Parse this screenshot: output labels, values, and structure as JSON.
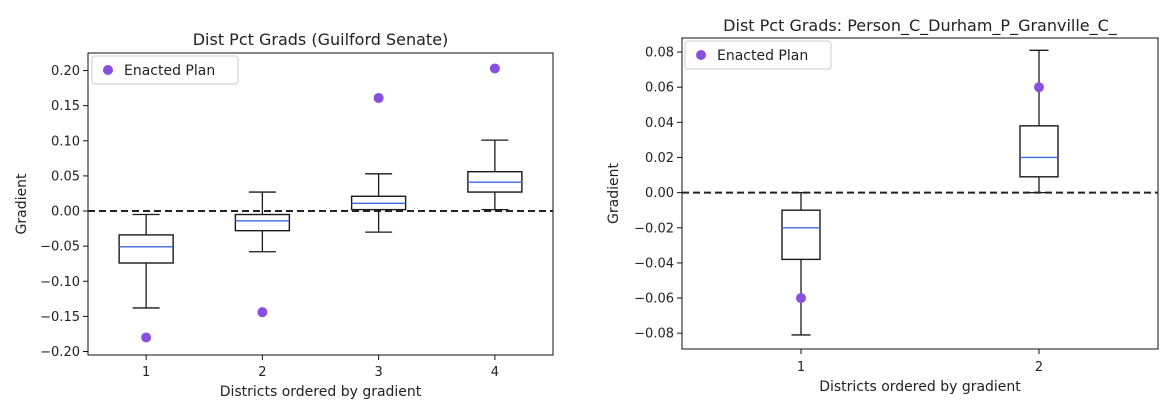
{
  "chart_data": [
    {
      "type": "box",
      "title": "Dist Pct Grads (Guilford Senate)",
      "xlabel": "Districts ordered by gradient",
      "ylabel": "Gradient",
      "categories": [
        "1",
        "2",
        "3",
        "4"
      ],
      "ylim": [
        -0.205,
        0.225
      ],
      "yticks": [
        -0.2,
        -0.15,
        -0.1,
        -0.05,
        0.0,
        0.05,
        0.1,
        0.15,
        0.2
      ],
      "ytick_labels": [
        "−0.20",
        "−0.15",
        "−0.10",
        "−0.05",
        "0.00",
        "0.05",
        "0.10",
        "0.15",
        "0.20"
      ],
      "boxes": [
        {
          "whisker_low": -0.138,
          "q1": -0.074,
          "median": -0.051,
          "q3": -0.034,
          "whisker_high": -0.005
        },
        {
          "whisker_low": -0.058,
          "q1": -0.028,
          "median": -0.014,
          "q3": -0.005,
          "whisker_high": 0.027
        },
        {
          "whisker_low": -0.03,
          "q1": 0.002,
          "median": 0.011,
          "q3": 0.021,
          "whisker_high": 0.053
        },
        {
          "whisker_low": 0.002,
          "q1": 0.027,
          "median": 0.041,
          "q3": 0.056,
          "whisker_high": 0.101
        }
      ],
      "reference_line": 0.0,
      "enacted": {
        "name": "Enacted Plan",
        "values": [
          -0.18,
          -0.144,
          0.161,
          0.203
        ]
      },
      "legend": "top-left",
      "grid": false
    },
    {
      "type": "box",
      "title": "Dist Pct Grads: Person_C_Durham_P_Granville_C_",
      "xlabel": "Districts ordered by gradient",
      "ylabel": "Gradient",
      "categories": [
        "1",
        "2"
      ],
      "ylim": [
        -0.089,
        0.088
      ],
      "yticks": [
        -0.08,
        -0.06,
        -0.04,
        -0.02,
        0.0,
        0.02,
        0.04,
        0.06,
        0.08
      ],
      "ytick_labels": [
        "−0.08",
        "−0.06",
        "−0.04",
        "−0.02",
        "0.00",
        "0.02",
        "0.04",
        "0.06",
        "0.08"
      ],
      "boxes": [
        {
          "whisker_low": -0.081,
          "q1": -0.038,
          "median": -0.02,
          "q3": -0.01,
          "whisker_high": 0.0
        },
        {
          "whisker_low": 0.0,
          "q1": 0.009,
          "median": 0.02,
          "q3": 0.038,
          "whisker_high": 0.081
        }
      ],
      "reference_line": 0.0,
      "enacted": {
        "name": "Enacted Plan",
        "values": [
          -0.06,
          0.06
        ]
      },
      "legend": "top-left",
      "grid": false
    }
  ],
  "colors": {
    "median": "#4169e1",
    "enacted": "#8a4fe0",
    "box": "#1a1a1a",
    "reference": "#222222"
  }
}
